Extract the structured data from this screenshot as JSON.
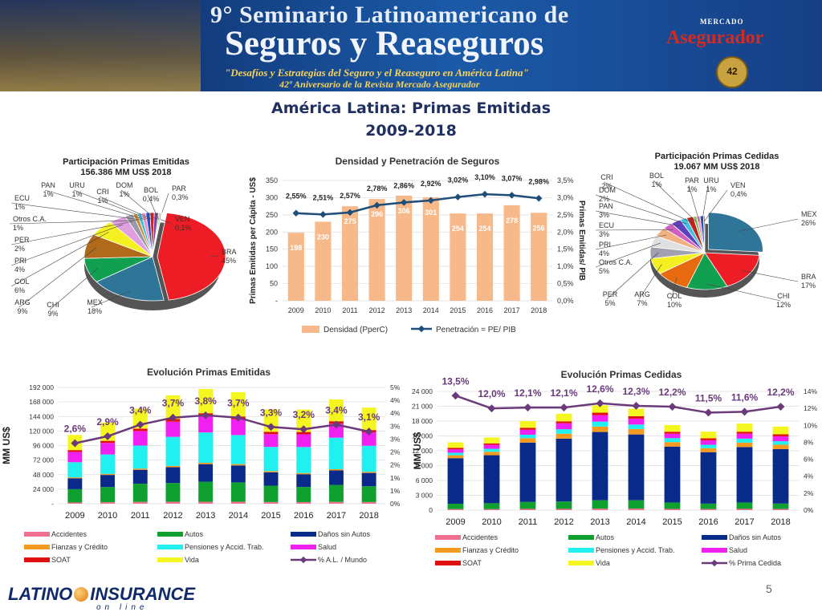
{
  "banner": {
    "title_line1": "9° Seminario Latinoamericano de",
    "title_line2": "Seguros y Reaseguros",
    "subtitle1": "\"Desafíos y Estrategias del Seguro y el Reaseguro en América Latina\"",
    "subtitle2": "42º Aniversario de la Revista Mercado Asegurador",
    "brand": "Asegurador",
    "brand_small": "MERCADO",
    "seal": "42"
  },
  "slide": {
    "title1": "América Latina: Primas Emitidas",
    "title2": "2009-2018",
    "page_number": "5"
  },
  "footer": {
    "logo_left": "LATINO",
    "logo_right": "INSURANCE",
    "logo_sub": "on line"
  },
  "chart_data": [
    {
      "id": "pie_emitidas",
      "type": "pie",
      "title": "Participación Primas Emitidas",
      "subtitle": "156.386 MM US$  2018",
      "slices": [
        {
          "label": "BRA",
          "value_label": "45%",
          "value": 45,
          "color": "#ee1c25"
        },
        {
          "label": "MEX",
          "value_label": "18%",
          "value": 18,
          "color": "#2e7597"
        },
        {
          "label": "CHI",
          "value_label": "9%",
          "value": 9,
          "color": "#10a050"
        },
        {
          "label": "ARG",
          "value_label": "9%",
          "value": 9,
          "color": "#b06a1a"
        },
        {
          "label": "COL",
          "value_label": "6%",
          "value": 6,
          "color": "#f5f020"
        },
        {
          "label": "PRI",
          "value_label": "4%",
          "value": 4,
          "color": "#e0a0e0"
        },
        {
          "label": "PER",
          "value_label": "2%",
          "value": 2,
          "color": "#9a9aaa"
        },
        {
          "label": "Otros C.A.",
          "value_label": "1%",
          "value": 1,
          "color": "#d08a3a"
        },
        {
          "label": "ECU",
          "value_label": "1%",
          "value": 1,
          "color": "#40c0e0"
        },
        {
          "label": "PAN",
          "value_label": "1%",
          "value": 1,
          "color": "#f08ac0"
        },
        {
          "label": "URU",
          "value_label": "1%",
          "value": 1,
          "color": "#2050c0"
        },
        {
          "label": "CRI",
          "value_label": "1%",
          "value": 1,
          "color": "#d02020"
        },
        {
          "label": "DOM",
          "value_label": "1%",
          "value": 1,
          "color": "#8040a0"
        },
        {
          "label": "BOL",
          "value_label": "0,4%",
          "value": 0.4,
          "color": "#a0d060"
        },
        {
          "label": "PAR",
          "value_label": "0,3%",
          "value": 0.3,
          "color": "#60a0a0"
        },
        {
          "label": "VEN",
          "value_label": "0,1%",
          "value": 0.1,
          "color": "#c03030"
        }
      ]
    },
    {
      "id": "densidad",
      "type": "bar",
      "title": "Densidad y Penetración de Seguros",
      "ylabel": "Primas Emitidas per Cápita - US$",
      "y2label": "Primas Emitidas/ PIB",
      "categories": [
        "2009",
        "2010",
        "2011",
        "2012",
        "2013",
        "2014",
        "2015",
        "2016",
        "2017",
        "2018"
      ],
      "series": [
        {
          "name": "Densidad (PperC)",
          "values": [
            198,
            230,
            275,
            296,
            306,
            301,
            254,
            254,
            278,
            256
          ],
          "color": "#f8b98a"
        },
        {
          "name": "Penetración = PE/ PIB",
          "values": [
            2.55,
            2.51,
            2.57,
            2.78,
            2.86,
            2.92,
            3.02,
            3.1,
            3.07,
            2.98
          ],
          "labels": [
            "2,55%",
            "2,51%",
            "2,57%",
            "2,78%",
            "2,86%",
            "2,92%",
            "3,02%",
            "3,10%",
            "3,07%",
            "2,98%"
          ],
          "color": "#1f4e79"
        }
      ],
      "ylim": [
        0,
        350
      ],
      "yticks": [
        "-",
        "50",
        "100",
        "150",
        "200",
        "250",
        "300",
        "350"
      ],
      "y2lim": [
        0,
        3.5
      ],
      "y2ticks": [
        "0,0%",
        "0,5%",
        "1,0%",
        "1,5%",
        "2,0%",
        "2,5%",
        "3,0%",
        "3,5%"
      ]
    },
    {
      "id": "pie_cedidas",
      "type": "pie",
      "title": "Participación Primas Cedidas",
      "subtitle": "19.067 MM US$  2018",
      "slices": [
        {
          "label": "MEX",
          "value_label": "26%",
          "value": 26,
          "color": "#2e7597"
        },
        {
          "label": "BRA",
          "value_label": "17%",
          "value": 17,
          "color": "#ee1c25"
        },
        {
          "label": "CHI",
          "value_label": "12%",
          "value": 12,
          "color": "#10a050"
        },
        {
          "label": "COL",
          "value_label": "10%",
          "value": 10,
          "color": "#e86a10"
        },
        {
          "label": "ARG",
          "value_label": "7%",
          "value": 7,
          "color": "#f5f020"
        },
        {
          "label": "PER",
          "value_label": "5%",
          "value": 5,
          "color": "#a0a0b0"
        },
        {
          "label": "Otros C.A.",
          "value_label": "5%",
          "value": 5,
          "color": "#e0e0e0"
        },
        {
          "label": "PRI",
          "value_label": "4%",
          "value": 4,
          "color": "#f0b080"
        },
        {
          "label": "ECU",
          "value_label": "3%",
          "value": 3,
          "color": "#d060c0"
        },
        {
          "label": "PAN",
          "value_label": "3%",
          "value": 3,
          "color": "#6040c0"
        },
        {
          "label": "DOM",
          "value_label": "2%",
          "value": 2,
          "color": "#40c0e0"
        },
        {
          "label": "CRI",
          "value_label": "2%",
          "value": 2,
          "color": "#c02020"
        },
        {
          "label": "BOL",
          "value_label": "1%",
          "value": 1,
          "color": "#80c060"
        },
        {
          "label": "PAR",
          "value_label": "1%",
          "value": 1,
          "color": "#f08ac0"
        },
        {
          "label": "URU",
          "value_label": "1%",
          "value": 1,
          "color": "#2050c0"
        },
        {
          "label": "VEN",
          "value_label": "0,4%",
          "value": 0.4,
          "color": "#a03030"
        }
      ]
    },
    {
      "id": "evol_emitidas",
      "type": "bar",
      "stacked": true,
      "title": "Evolución Primas Emitidas",
      "ylabel": "MM  US$",
      "categories": [
        "2009",
        "2010",
        "2011",
        "2012",
        "2013",
        "2014",
        "2015",
        "2016",
        "2017",
        "2018"
      ],
      "ylim": [
        0,
        192000
      ],
      "yticks": [
        "-",
        "24 000",
        "48 000",
        "72 000",
        "96 000",
        "120 000",
        "144 000",
        "168 000",
        "192 000"
      ],
      "y2lim": [
        0,
        5
      ],
      "y2ticks": [
        "0%",
        "1%",
        "1%",
        "2%",
        "2%",
        "3%",
        "3%",
        "4%",
        "4%",
        "5%"
      ],
      "series": [
        {
          "name": "Accidentes",
          "color": "#f07090",
          "values": [
            2000,
            2500,
            3000,
            3200,
            3300,
            3200,
            2800,
            2700,
            3000,
            2800
          ]
        },
        {
          "name": "Autos",
          "color": "#10a030",
          "values": [
            22000,
            25000,
            30000,
            31000,
            33000,
            32000,
            27000,
            25000,
            28000,
            26000
          ]
        },
        {
          "name": "Daños sin Autos",
          "color": "#0a2a8a",
          "values": [
            18000,
            20000,
            23000,
            26000,
            29000,
            28000,
            22000,
            21000,
            24000,
            22000
          ]
        },
        {
          "name": "Fianzas y Crédito",
          "color": "#f59a20",
          "values": [
            1500,
            1800,
            2000,
            2200,
            2300,
            2200,
            2000,
            1900,
            2000,
            1900
          ]
        },
        {
          "name": "Pensiones y Accid. Trab.",
          "color": "#20f0f0",
          "values": [
            25000,
            32000,
            38000,
            48000,
            50000,
            48000,
            40000,
            43000,
            52000,
            43000
          ]
        },
        {
          "name": "Salud",
          "color": "#f020f0",
          "values": [
            17000,
            19000,
            24000,
            25000,
            27000,
            26000,
            21000,
            21000,
            23000,
            22000
          ]
        },
        {
          "name": "SOAT",
          "color": "#e01010",
          "values": [
            3000,
            3500,
            4000,
            4500,
            4800,
            4600,
            4000,
            3800,
            4100,
            3900
          ]
        },
        {
          "name": "Vida",
          "color": "#f5f520",
          "values": [
            25000,
            30000,
            33000,
            39000,
            40000,
            40000,
            37000,
            37000,
            36000,
            37000
          ]
        },
        {
          "name": "% A.L. / Mundo",
          "color": "#6a3a7a",
          "line": true,
          "values": [
            2.6,
            2.9,
            3.4,
            3.7,
            3.8,
            3.7,
            3.3,
            3.2,
            3.4,
            3.1
          ],
          "labels": [
            "2,6%",
            "2,9%",
            "3,4%",
            "3,7%",
            "3,8%",
            "3,7%",
            "3,3%",
            "3,2%",
            "3,4%",
            "3,1%"
          ]
        }
      ]
    },
    {
      "id": "evol_cedidas",
      "type": "bar",
      "stacked": true,
      "title": "Evolución Primas Cedidas",
      "ylabel": "MM  US$",
      "categories": [
        "2009",
        "2010",
        "2011",
        "2012",
        "2013",
        "2014",
        "2015",
        "2016",
        "2017",
        "2018"
      ],
      "ylim": [
        0,
        24000
      ],
      "yticks": [
        "0",
        "3 000",
        "6 000",
        "9 000",
        "12 000",
        "15 000",
        "18 000",
        "21 000",
        "24 000"
      ],
      "y2lim": [
        0,
        14
      ],
      "y2ticks": [
        "0%",
        "2%",
        "4%",
        "6%",
        "8%",
        "10%",
        "12%",
        "14%"
      ],
      "series": [
        {
          "name": "Accidentes",
          "color": "#f07090",
          "values": [
            200,
            200,
            250,
            250,
            300,
            300,
            250,
            220,
            250,
            230
          ]
        },
        {
          "name": "Autos",
          "color": "#10a030",
          "values": [
            1100,
            1200,
            1400,
            1500,
            1700,
            1700,
            1300,
            1100,
            1300,
            1100
          ]
        },
        {
          "name": "Daños sin Autos",
          "color": "#0a2a8a",
          "values": [
            9200,
            9700,
            12000,
            12700,
            13800,
            13300,
            11300,
            10400,
            11200,
            11000
          ]
        },
        {
          "name": "Fianzas y Crédito",
          "color": "#f59a20",
          "values": [
            600,
            700,
            900,
            1000,
            1100,
            1100,
            900,
            800,
            900,
            900
          ]
        },
        {
          "name": "Pensiones y Accid. Trab.",
          "color": "#20f0f0",
          "values": [
            500,
            600,
            700,
            900,
            1000,
            900,
            800,
            700,
            800,
            700
          ]
        },
        {
          "name": "Salud",
          "color": "#f020f0",
          "values": [
            700,
            800,
            1000,
            1200,
            1300,
            1200,
            900,
            900,
            1000,
            1000
          ]
        },
        {
          "name": "SOAT",
          "color": "#e01010",
          "values": [
            300,
            300,
            400,
            400,
            500,
            500,
            400,
            400,
            400,
            400
          ]
        },
        {
          "name": "Vida",
          "color": "#f5f520",
          "values": [
            1100,
            1200,
            1350,
            1550,
            1500,
            1500,
            1350,
            1350,
            1650,
            1570
          ]
        },
        {
          "name": "% Prima Cedida",
          "color": "#6a3a7a",
          "line": true,
          "values": [
            13.5,
            12.0,
            12.1,
            12.1,
            12.6,
            12.3,
            12.2,
            11.5,
            11.6,
            12.2
          ],
          "labels": [
            "13,5%",
            "12,0%",
            "12,1%",
            "12,1%",
            "12,6%",
            "12,3%",
            "12,2%",
            "11,5%",
            "11,6%",
            "12,2%"
          ]
        }
      ]
    }
  ]
}
